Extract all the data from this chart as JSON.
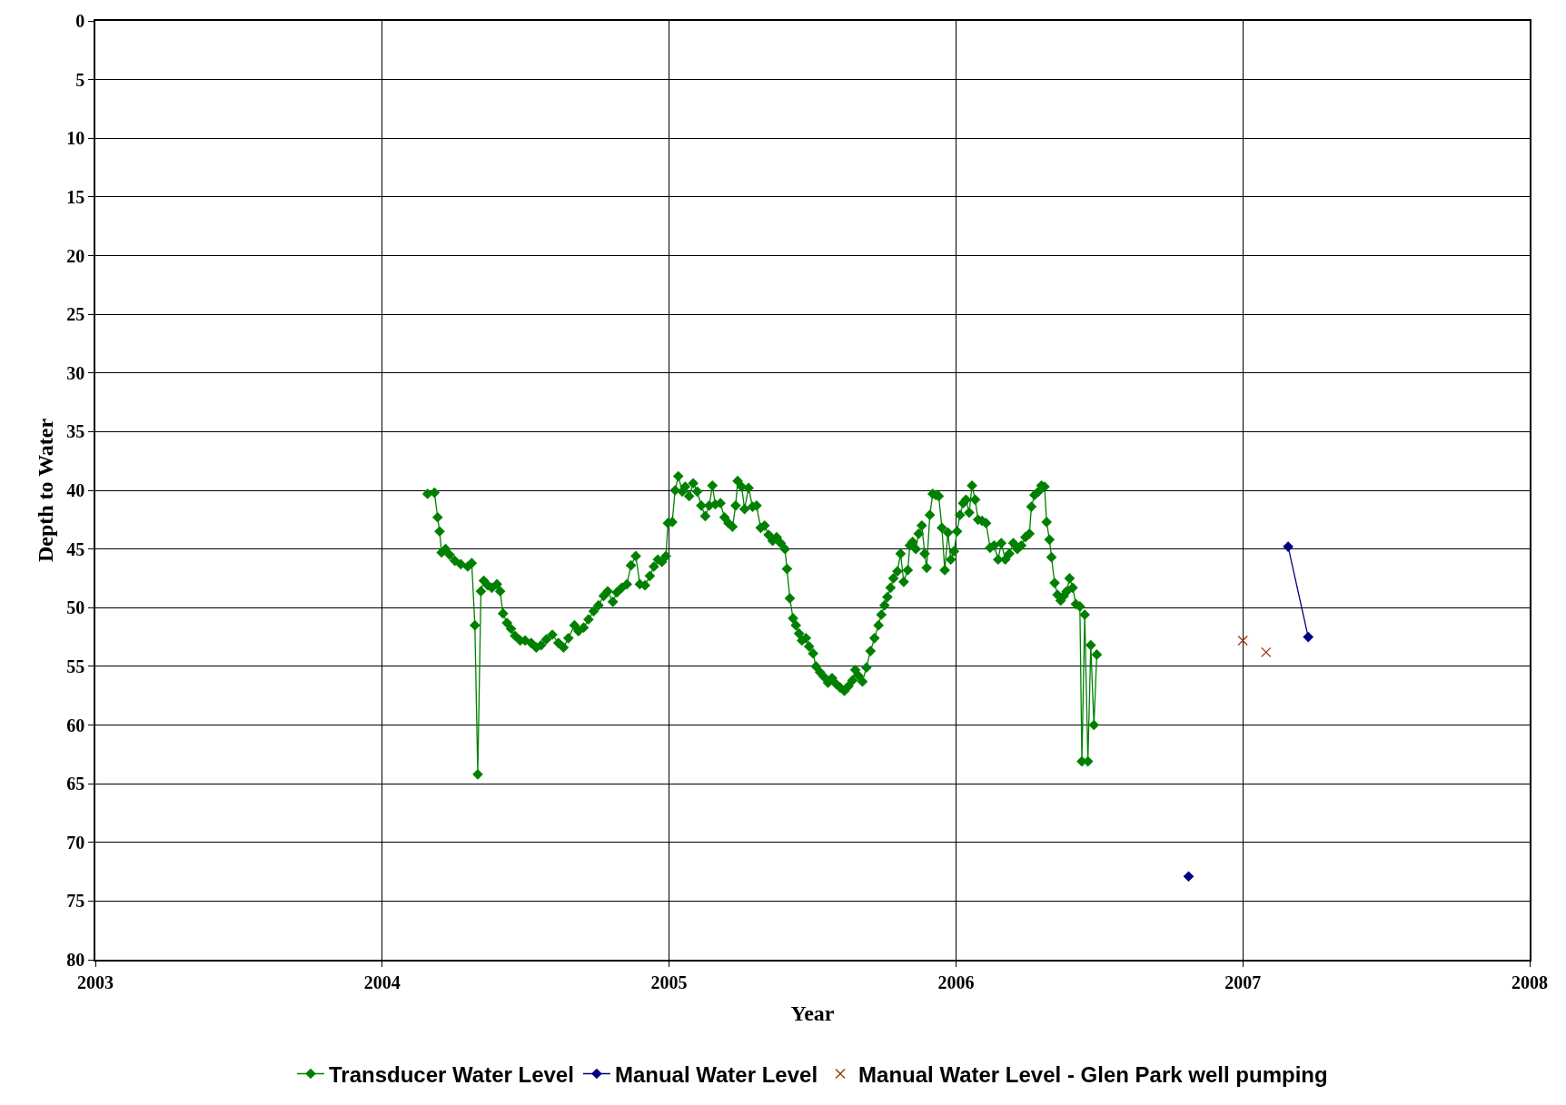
{
  "chart_data": {
    "type": "line",
    "xlabel": "Year",
    "ylabel": "Depth to Water",
    "xlim": [
      2003,
      2008
    ],
    "xticks": [
      2003,
      2004,
      2005,
      2006,
      2007,
      2008
    ],
    "ylim": [
      80,
      0
    ],
    "yticks": [
      0,
      5,
      10,
      15,
      20,
      25,
      30,
      35,
      40,
      45,
      50,
      55,
      60,
      65,
      70,
      75,
      80
    ],
    "grid": true,
    "legend": "bottom",
    "series": [
      {
        "name": "Transducer Water Level",
        "color": "#008000",
        "marker": "diamond",
        "line_style": "solid",
        "x": [
          2004.158,
          2004.182,
          2004.193,
          2004.2,
          2004.207,
          2004.221,
          2004.235,
          2004.253,
          2004.274,
          2004.298,
          2004.312,
          2004.323,
          2004.333,
          2004.344,
          2004.354,
          2004.368,
          2004.382,
          2004.4,
          2004.411,
          2004.421,
          2004.435,
          2004.449,
          2004.463,
          2004.481,
          2004.498,
          2004.519,
          2004.537,
          2004.554,
          2004.572,
          2004.593,
          2004.614,
          2004.632,
          2004.649,
          2004.67,
          2004.684,
          2004.702,
          2004.719,
          2004.737,
          2004.754,
          2004.772,
          2004.786,
          2004.804,
          2004.818,
          2004.835,
          2004.853,
          2004.867,
          2004.884,
          2004.898,
          2004.916,
          2004.933,
          2004.947,
          2004.961,
          2004.975,
          2004.989,
          2004.996,
          2005.011,
          2005.021,
          2005.032,
          2005.046,
          2005.056,
          2005.07,
          2005.084,
          2005.098,
          2005.112,
          2005.126,
          2005.14,
          2005.151,
          2005.161,
          2005.179,
          2005.193,
          2005.207,
          2005.221,
          2005.232,
          2005.239,
          2005.253,
          2005.263,
          2005.277,
          2005.291,
          2005.305,
          2005.319,
          2005.333,
          2005.347,
          2005.361,
          2005.375,
          2005.389,
          2005.404,
          2005.411,
          2005.421,
          2005.432,
          2005.442,
          2005.453,
          2005.463,
          2005.477,
          2005.488,
          2005.502,
          2005.512,
          2005.526,
          2005.54,
          2005.554,
          2005.568,
          2005.582,
          2005.596,
          2005.611,
          2005.625,
          2005.639,
          2005.649,
          2005.66,
          2005.674,
          2005.688,
          2005.702,
          2005.716,
          2005.73,
          2005.74,
          2005.751,
          2005.761,
          2005.772,
          2005.782,
          2005.796,
          2005.807,
          2005.818,
          2005.832,
          2005.839,
          2005.849,
          2005.86,
          2005.87,
          2005.881,
          2005.891,
          2005.898,
          2005.909,
          2005.919,
          2005.93,
          2005.94,
          2005.951,
          2005.961,
          2005.972,
          2005.982,
          2005.993,
          2006.004,
          2006.014,
          2006.025,
          2006.035,
          2006.046,
          2006.056,
          2006.067,
          2006.077,
          2006.091,
          2006.105,
          2006.119,
          2006.133,
          2006.147,
          2006.158,
          2006.172,
          2006.186,
          2006.2,
          2006.214,
          2006.228,
          2006.242,
          2006.256,
          2006.263,
          2006.274,
          2006.288,
          2006.298,
          2006.309,
          2006.316,
          2006.326,
          2006.333,
          2006.344,
          2006.354,
          2006.365,
          2006.376,
          2006.386,
          2006.396,
          2006.407,
          2006.418,
          2006.432,
          2006.439,
          2006.449,
          2006.46,
          2006.47,
          2006.481,
          2006.491
        ],
        "values": [
          40.3,
          40.2,
          42.3,
          43.5,
          45.3,
          45.0,
          45.5,
          46.0,
          46.3,
          46.5,
          46.2,
          51.5,
          64.2,
          48.6,
          47.7,
          48.1,
          48.3,
          48.0,
          48.6,
          50.5,
          51.3,
          51.8,
          52.4,
          52.8,
          52.8,
          53.0,
          53.4,
          53.2,
          52.7,
          52.3,
          53.0,
          53.4,
          52.6,
          51.5,
          52.0,
          51.7,
          51.0,
          50.3,
          49.8,
          49.0,
          48.6,
          49.5,
          48.7,
          48.3,
          48.0,
          46.4,
          45.6,
          48.0,
          48.1,
          47.3,
          46.5,
          45.9,
          46.1,
          45.6,
          42.8,
          42.7,
          40.0,
          38.8,
          40.1,
          39.7,
          40.5,
          39.4,
          40.1,
          41.3,
          42.2,
          41.3,
          39.6,
          41.2,
          41.1,
          42.3,
          42.8,
          43.1,
          41.3,
          39.2,
          39.7,
          41.6,
          39.8,
          41.4,
          41.3,
          43.2,
          43.0,
          43.8,
          44.3,
          44.0,
          44.5,
          45.0,
          46.7,
          49.2,
          50.9,
          51.5,
          52.2,
          52.8,
          52.6,
          53.3,
          53.9,
          55.0,
          55.5,
          55.9,
          56.4,
          56.0,
          56.5,
          56.8,
          57.1,
          56.7,
          56.2,
          55.3,
          55.8,
          56.3,
          55.1,
          53.7,
          52.6,
          51.5,
          50.6,
          49.8,
          49.1,
          48.3,
          47.5,
          46.9,
          45.4,
          47.8,
          46.8,
          44.7,
          44.4,
          45.0,
          43.7,
          43.0,
          45.4,
          46.6,
          42.1,
          40.3,
          40.4,
          40.5,
          43.2,
          46.8,
          43.6,
          45.9,
          45.2,
          43.5,
          42.1,
          41.1,
          40.8,
          41.9,
          39.6,
          40.8,
          42.5,
          42.6,
          42.8,
          44.9,
          44.7,
          45.9,
          44.5,
          45.9,
          45.4,
          44.5,
          45.0,
          44.7,
          44.0,
          43.7,
          41.4,
          40.4,
          40.1,
          39.6,
          39.7,
          42.7,
          44.2,
          45.7,
          47.9,
          48.9,
          49.4,
          49.0,
          48.6,
          47.5,
          48.3,
          49.7,
          49.9,
          63.1,
          50.6,
          63.1,
          53.2,
          60.0,
          54.0
        ]
      },
      {
        "name": "Manual Water Level",
        "color": "#000080",
        "marker": "diamond",
        "line_style": "solid",
        "x": [
          2006.811,
          null,
          2007.158,
          2007.228
        ],
        "values": [
          72.9,
          null,
          44.8,
          52.5
        ]
      },
      {
        "name": "Manual Water Level - Glen Park well pumping",
        "type": "scatter",
        "color": "#993300",
        "marker": "cross",
        "x": [
          2007.0,
          2007.081
        ],
        "values": [
          52.8,
          53.8
        ]
      }
    ]
  }
}
